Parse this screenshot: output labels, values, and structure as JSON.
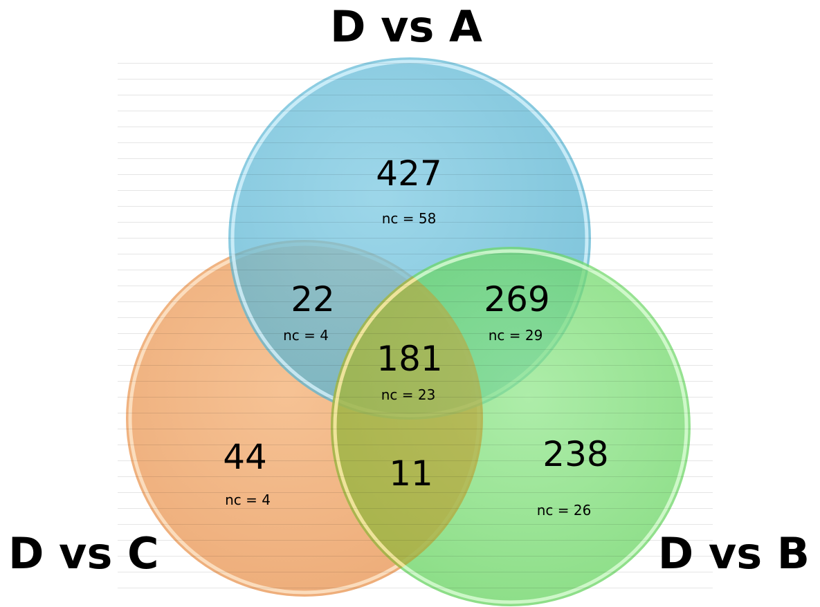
{
  "sets": {
    "a": {
      "label": "D vs A",
      "color": "#6bbfd9"
    },
    "b": {
      "label": "D vs B",
      "color": "#6fd86a"
    },
    "c": {
      "label": "D vs C",
      "color": "#f0a866"
    }
  },
  "regions": {
    "a_only": {
      "count": "427",
      "nc": "nc = 58"
    },
    "a_c": {
      "count": "22",
      "nc": "nc = 4"
    },
    "a_b": {
      "count": "269",
      "nc": "nc = 29"
    },
    "a_b_c": {
      "count": "181",
      "nc": "nc = 23"
    },
    "c_only": {
      "count": "44",
      "nc": "nc = 4"
    },
    "b_c": {
      "count": "11"
    },
    "b_only": {
      "count": "238",
      "nc": "nc = 26"
    }
  }
}
